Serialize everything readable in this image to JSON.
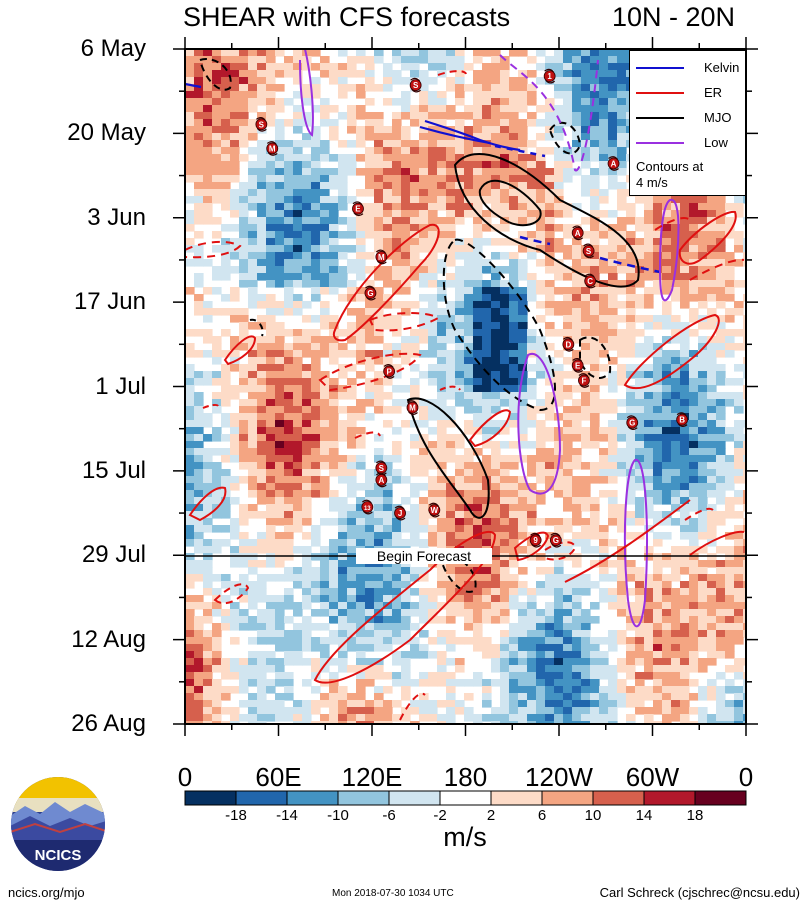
{
  "header": {
    "title": "SHEAR with CFS forecasts",
    "region": "10N - 20N"
  },
  "legend": {
    "items": [
      {
        "label": "Kelvin",
        "color": "#1010d0"
      },
      {
        "label": "ER",
        "color": "#e01010"
      },
      {
        "label": "MJO",
        "color": "#000000"
      },
      {
        "label": "Low",
        "color": "#9a30e0"
      }
    ],
    "note_line1": "Contours at",
    "note_line2": "4 m/s"
  },
  "forecast_label": "Begin Forecast",
  "colorbar": {
    "units": "m/s",
    "levels": [
      "-18",
      "-14",
      "-10",
      "-6",
      "-2",
      "2",
      "6",
      "10",
      "14",
      "18"
    ],
    "colors": [
      "#053061",
      "#2166ac",
      "#4393c3",
      "#92c5de",
      "#d1e5f0",
      "#ffffff",
      "#fddbc7",
      "#f4a582",
      "#d6604d",
      "#b2182b",
      "#67001f"
    ]
  },
  "footer": {
    "left": "ncics.org/mjo",
    "middle": "Mon 2018-07-30 1034 UTC",
    "right": "Carl Schreck (cjschrec@ncsu.edu)",
    "logo_text": "NCICS"
  },
  "chart_data": {
    "type": "heatmap",
    "title": "SHEAR with CFS forecasts",
    "subtitle": "10N - 20N",
    "x_tick_labels": [
      "0",
      "60E",
      "120E",
      "180",
      "120W",
      "60W",
      "0"
    ],
    "x_ticks_deg": [
      0,
      60,
      120,
      180,
      240,
      300,
      360
    ],
    "xlim_deg": [
      0,
      360
    ],
    "y_tick_labels": [
      "6 May",
      "20 May",
      "3 Jun",
      "17 Jun",
      "1 Jul",
      "15 Jul",
      "29 Jul",
      "12 Aug",
      "26 Aug"
    ],
    "y_ticks_day": [
      0,
      14,
      28,
      42,
      56,
      70,
      84,
      98,
      112
    ],
    "ylim_day": [
      0,
      112
    ],
    "forecast_start_day": 84,
    "units": "m/s",
    "contour_interval": 4,
    "storms": [
      {
        "symbol": "S",
        "lon": 49,
        "day": 12.5
      },
      {
        "symbol": "M",
        "lon": 56,
        "day": 16.5
      },
      {
        "symbol": "E",
        "lon": 111,
        "day": 26.5
      },
      {
        "symbol": "M",
        "lon": 126,
        "day": 34.5
      },
      {
        "symbol": "G",
        "lon": 119,
        "day": 40.5
      },
      {
        "symbol": "P",
        "lon": 131,
        "day": 53.5
      },
      {
        "symbol": "M",
        "lon": 146,
        "day": 59.5
      },
      {
        "symbol": "S",
        "lon": 126,
        "day": 69.5
      },
      {
        "symbol": "A",
        "lon": 126,
        "day": 71.5
      },
      {
        "symbol": "13",
        "lon": 117,
        "day": 76
      },
      {
        "symbol": "J",
        "lon": 138,
        "day": 77
      },
      {
        "symbol": "W",
        "lon": 160,
        "day": 76.5
      },
      {
        "symbol": "9",
        "lon": 225,
        "day": 81.5
      },
      {
        "symbol": "G",
        "lon": 238,
        "day": 81.5
      },
      {
        "symbol": "1",
        "lon": 234,
        "day": 4.5
      },
      {
        "symbol": "A",
        "lon": 275,
        "day": 19
      },
      {
        "symbol": "A",
        "lon": 252,
        "day": 30.5
      },
      {
        "symbol": "S",
        "lon": 259,
        "day": 33.5
      },
      {
        "symbol": "C",
        "lon": 260,
        "day": 38.5
      },
      {
        "symbol": "D",
        "lon": 246,
        "day": 49
      },
      {
        "symbol": "E",
        "lon": 252,
        "day": 52.5
      },
      {
        "symbol": "F",
        "lon": 256,
        "day": 55
      },
      {
        "symbol": "G",
        "lon": 287,
        "day": 62
      },
      {
        "symbol": "B",
        "lon": 319,
        "day": 61.5
      },
      {
        "symbol": "S",
        "lon": 148,
        "day": 6
      }
    ]
  }
}
